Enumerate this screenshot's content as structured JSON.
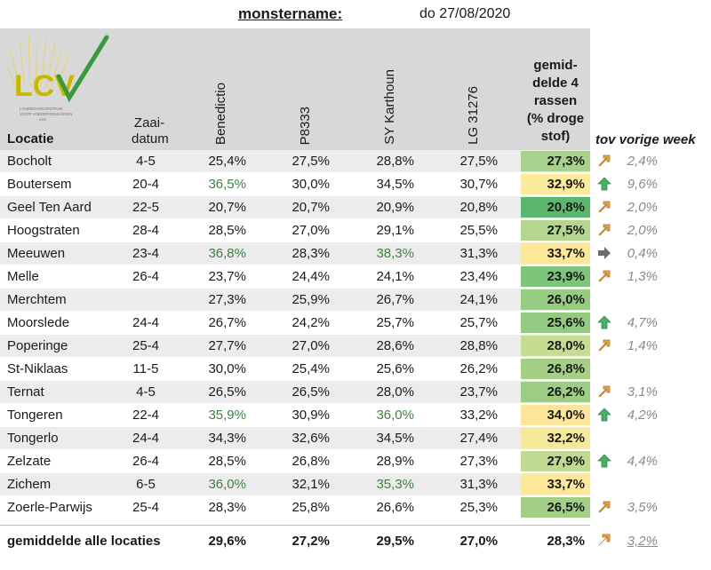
{
  "header": {
    "label": "monstername:",
    "date": "do 27/08/2020"
  },
  "logo": {
    "text": "LCV",
    "subtitle_lines": [
      "LANDBOUWCENTRUM",
      "VOOR VOEDERGEWASSEN",
      "vzw"
    ]
  },
  "columns": {
    "locatie": "Locatie",
    "zaai_1": "Zaai-",
    "zaai_2": "datum",
    "varieties": [
      "Benedictio",
      "P8333",
      "SY Karthoun",
      "LG 31276"
    ],
    "avg_lines": [
      "gemid-",
      "delde 4",
      "rassen",
      "(% droge",
      "stof)"
    ],
    "tov": "tov vorige week"
  },
  "rows": [
    {
      "loc": "Bocholt",
      "zaai": "4-5",
      "v": [
        "25,4%",
        "27,5%",
        "28,8%",
        "27,5%"
      ],
      "hl": [
        false,
        false,
        false,
        false
      ],
      "avg": "27,3%",
      "avg_color": "#a9d18e",
      "arrow": "diag",
      "arrow_name": "arrow-up-right-icon",
      "pct": "2,4%"
    },
    {
      "loc": "Boutersem",
      "zaai": "20-4",
      "v": [
        "36,5%",
        "30,0%",
        "34,5%",
        "30,7%"
      ],
      "hl": [
        true,
        false,
        false,
        false
      ],
      "avg": "32,9%",
      "avg_color": "#fdeb9c",
      "arrow": "up",
      "arrow_name": "arrow-up-icon",
      "pct": "9,6%"
    },
    {
      "loc": "Geel Ten Aard",
      "zaai": "22-5",
      "v": [
        "20,7%",
        "20,7%",
        "20,9%",
        "20,8%"
      ],
      "hl": [
        false,
        false,
        false,
        false
      ],
      "avg": "20,8%",
      "avg_color": "#5cb76e",
      "arrow": "diag",
      "arrow_name": "arrow-up-right-icon",
      "pct": "2,0%"
    },
    {
      "loc": "Hoogstraten",
      "zaai": "28-4",
      "v": [
        "28,5%",
        "27,0%",
        "29,1%",
        "25,5%"
      ],
      "hl": [
        false,
        false,
        false,
        false
      ],
      "avg": "27,5%",
      "avg_color": "#b5d68f",
      "arrow": "diag",
      "arrow_name": "arrow-up-right-icon",
      "pct": "2,0%"
    },
    {
      "loc": "Meeuwen",
      "zaai": "23-4",
      "v": [
        "36,8%",
        "28,3%",
        "38,3%",
        "31,3%"
      ],
      "hl": [
        true,
        false,
        true,
        false
      ],
      "avg": "33,7%",
      "avg_color": "#fde89a",
      "arrow": "right",
      "arrow_name": "arrow-right-icon",
      "pct": "0,4%"
    },
    {
      "loc": "Melle",
      "zaai": "26-4",
      "v": [
        "23,7%",
        "24,4%",
        "24,1%",
        "23,4%"
      ],
      "hl": [
        false,
        false,
        false,
        false
      ],
      "avg": "23,9%",
      "avg_color": "#7ec57c",
      "arrow": "diag",
      "arrow_name": "arrow-up-right-icon",
      "pct": "1,3%"
    },
    {
      "loc": "Merchtem",
      "zaai": "",
      "v": [
        "27,3%",
        "25,9%",
        "26,7%",
        "24,1%"
      ],
      "hl": [
        false,
        false,
        false,
        false
      ],
      "avg": "26,0%",
      "avg_color": "#98cb82",
      "arrow": "",
      "arrow_name": "",
      "pct": ""
    },
    {
      "loc": "Moorslede",
      "zaai": "24-4",
      "v": [
        "26,7%",
        "24,2%",
        "25,7%",
        "25,7%"
      ],
      "hl": [
        false,
        false,
        false,
        false
      ],
      "avg": "25,6%",
      "avg_color": "#94c981",
      "arrow": "up",
      "arrow_name": "arrow-up-icon",
      "pct": "4,7%"
    },
    {
      "loc": "Poperinge",
      "zaai": "25-4",
      "v": [
        "27,7%",
        "27,0%",
        "28,6%",
        "28,8%"
      ],
      "hl": [
        false,
        false,
        false,
        false
      ],
      "avg": "28,0%",
      "avg_color": "#c5dc92",
      "arrow": "diag",
      "arrow_name": "arrow-up-right-icon",
      "pct": "1,4%"
    },
    {
      "loc": "St-Niklaas",
      "zaai": "11-5",
      "v": [
        "30,0%",
        "25,4%",
        "25,6%",
        "26,2%"
      ],
      "hl": [
        false,
        false,
        false,
        false
      ],
      "avg": "26,8%",
      "avg_color": "#a6cf86",
      "arrow": "",
      "arrow_name": "",
      "pct": ""
    },
    {
      "loc": "Ternat",
      "zaai": "4-5",
      "v": [
        "26,5%",
        "26,5%",
        "28,0%",
        "23,7%"
      ],
      "hl": [
        false,
        false,
        false,
        false
      ],
      "avg": "26,2%",
      "avg_color": "#9dcc84",
      "arrow": "diag",
      "arrow_name": "arrow-up-right-icon",
      "pct": "3,1%"
    },
    {
      "loc": "Tongeren",
      "zaai": "22-4",
      "v": [
        "35,9%",
        "30,9%",
        "36,0%",
        "33,2%"
      ],
      "hl": [
        true,
        false,
        true,
        false
      ],
      "avg": "34,0%",
      "avg_color": "#fde699",
      "arrow": "up",
      "arrow_name": "arrow-up-icon",
      "pct": "4,2%"
    },
    {
      "loc": "Tongerlo",
      "zaai": "24-4",
      "v": [
        "34,3%",
        "32,6%",
        "34,5%",
        "27,4%"
      ],
      "hl": [
        false,
        false,
        false,
        false
      ],
      "avg": "32,2%",
      "avg_color": "#f4e99a",
      "arrow": "",
      "arrow_name": "",
      "pct": ""
    },
    {
      "loc": "Zelzate",
      "zaai": "26-4",
      "v": [
        "28,5%",
        "26,8%",
        "28,9%",
        "27,3%"
      ],
      "hl": [
        false,
        false,
        false,
        false
      ],
      "avg": "27,9%",
      "avg_color": "#c1da91",
      "arrow": "up",
      "arrow_name": "arrow-up-icon",
      "pct": "4,4%"
    },
    {
      "loc": "Zichem",
      "zaai": "6-5",
      "v": [
        "36,0%",
        "32,1%",
        "35,3%",
        "31,3%"
      ],
      "hl": [
        true,
        false,
        true,
        false
      ],
      "avg": "33,7%",
      "avg_color": "#fde89a",
      "arrow": "",
      "arrow_name": "",
      "pct": ""
    },
    {
      "loc": "Zoerle-Parwijs",
      "zaai": "25-4",
      "v": [
        "28,3%",
        "25,8%",
        "26,6%",
        "25,3%"
      ],
      "hl": [
        false,
        false,
        false,
        false
      ],
      "avg": "26,5%",
      "avg_color": "#a2ce85",
      "arrow": "diag",
      "arrow_name": "arrow-up-right-icon",
      "pct": "3,5%"
    }
  ],
  "footer": {
    "label": "gemiddelde alle locaties",
    "v": [
      "29,6%",
      "27,2%",
      "29,5%",
      "27,0%"
    ],
    "avg": "28,3%",
    "pct": "3,2%"
  },
  "colors": {
    "header_bg": "#d8d8d8",
    "row_alt": "#ececec",
    "highlight_text": "#3f7f3f",
    "arrow_diag": "#e8a33a",
    "arrow_up": "#4caf6a",
    "arrow_right": "#6b6b6b"
  }
}
